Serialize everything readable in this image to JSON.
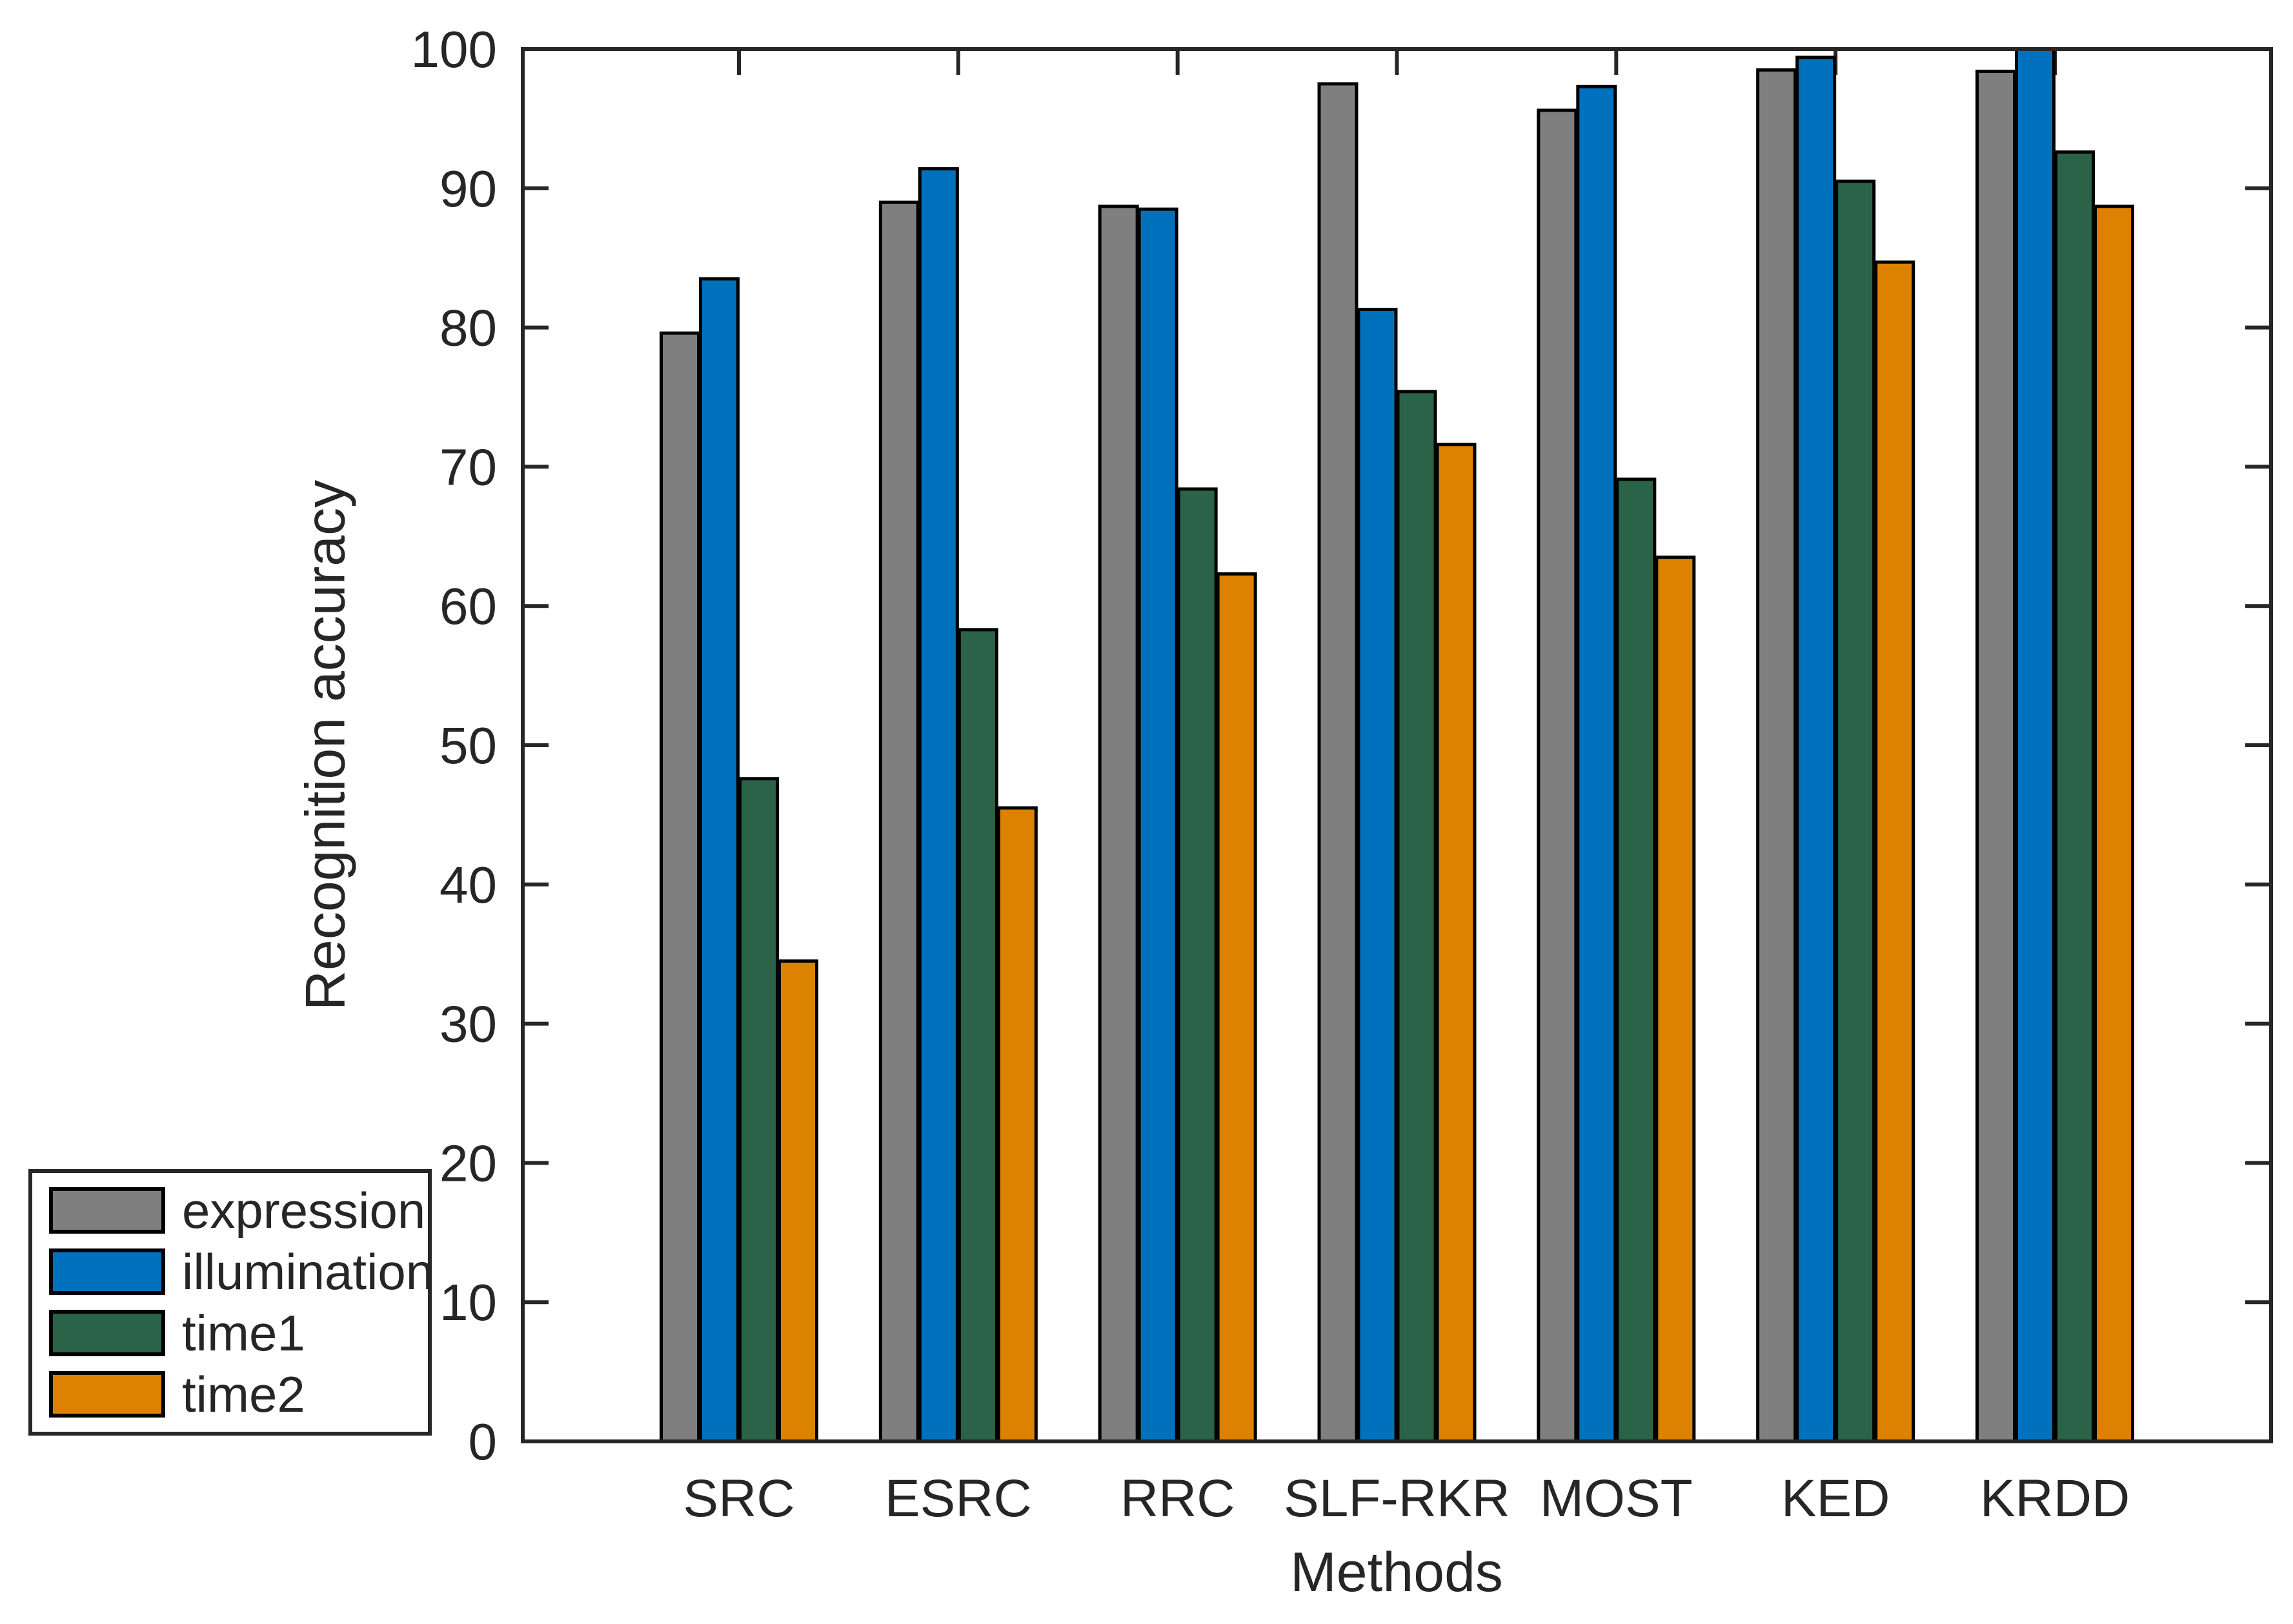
{
  "figure": {
    "background": "#ffffff",
    "axis_color": "#262626",
    "bar_edge_color": "#000000",
    "text_color": "#262626"
  },
  "chart_data": {
    "type": "bar",
    "title": "",
    "xlabel": "Methods",
    "ylabel": "Recognition accuracy",
    "categories": [
      "SRC",
      "ESRC",
      "RRC",
      "SLF-RKR",
      "MOST",
      "KED",
      "KRDD"
    ],
    "series": [
      {
        "name": "expression",
        "color": "#7F7F7F",
        "values": [
          79.6,
          89.0,
          88.7,
          97.5,
          95.6,
          98.5,
          98.4
        ]
      },
      {
        "name": "illumination",
        "color": "#0072BD",
        "values": [
          83.5,
          91.4,
          88.5,
          81.3,
          97.3,
          99.4,
          100.0
        ]
      },
      {
        "name": "time1",
        "color": "#2B6349",
        "values": [
          47.6,
          58.3,
          68.4,
          75.4,
          69.1,
          90.5,
          92.6
        ]
      },
      {
        "name": "time2",
        "color": "#DD8100",
        "values": [
          34.5,
          45.5,
          62.3,
          71.6,
          63.5,
          84.7,
          88.7
        ]
      }
    ],
    "ylim": [
      0,
      100
    ],
    "y_ticks": [
      0,
      10,
      20,
      30,
      40,
      50,
      60,
      70,
      80,
      90,
      100
    ],
    "grid": false,
    "legend_position": "lower-left-outside",
    "legend_entries": [
      "expression",
      "illumination",
      "time1",
      "time2"
    ]
  }
}
